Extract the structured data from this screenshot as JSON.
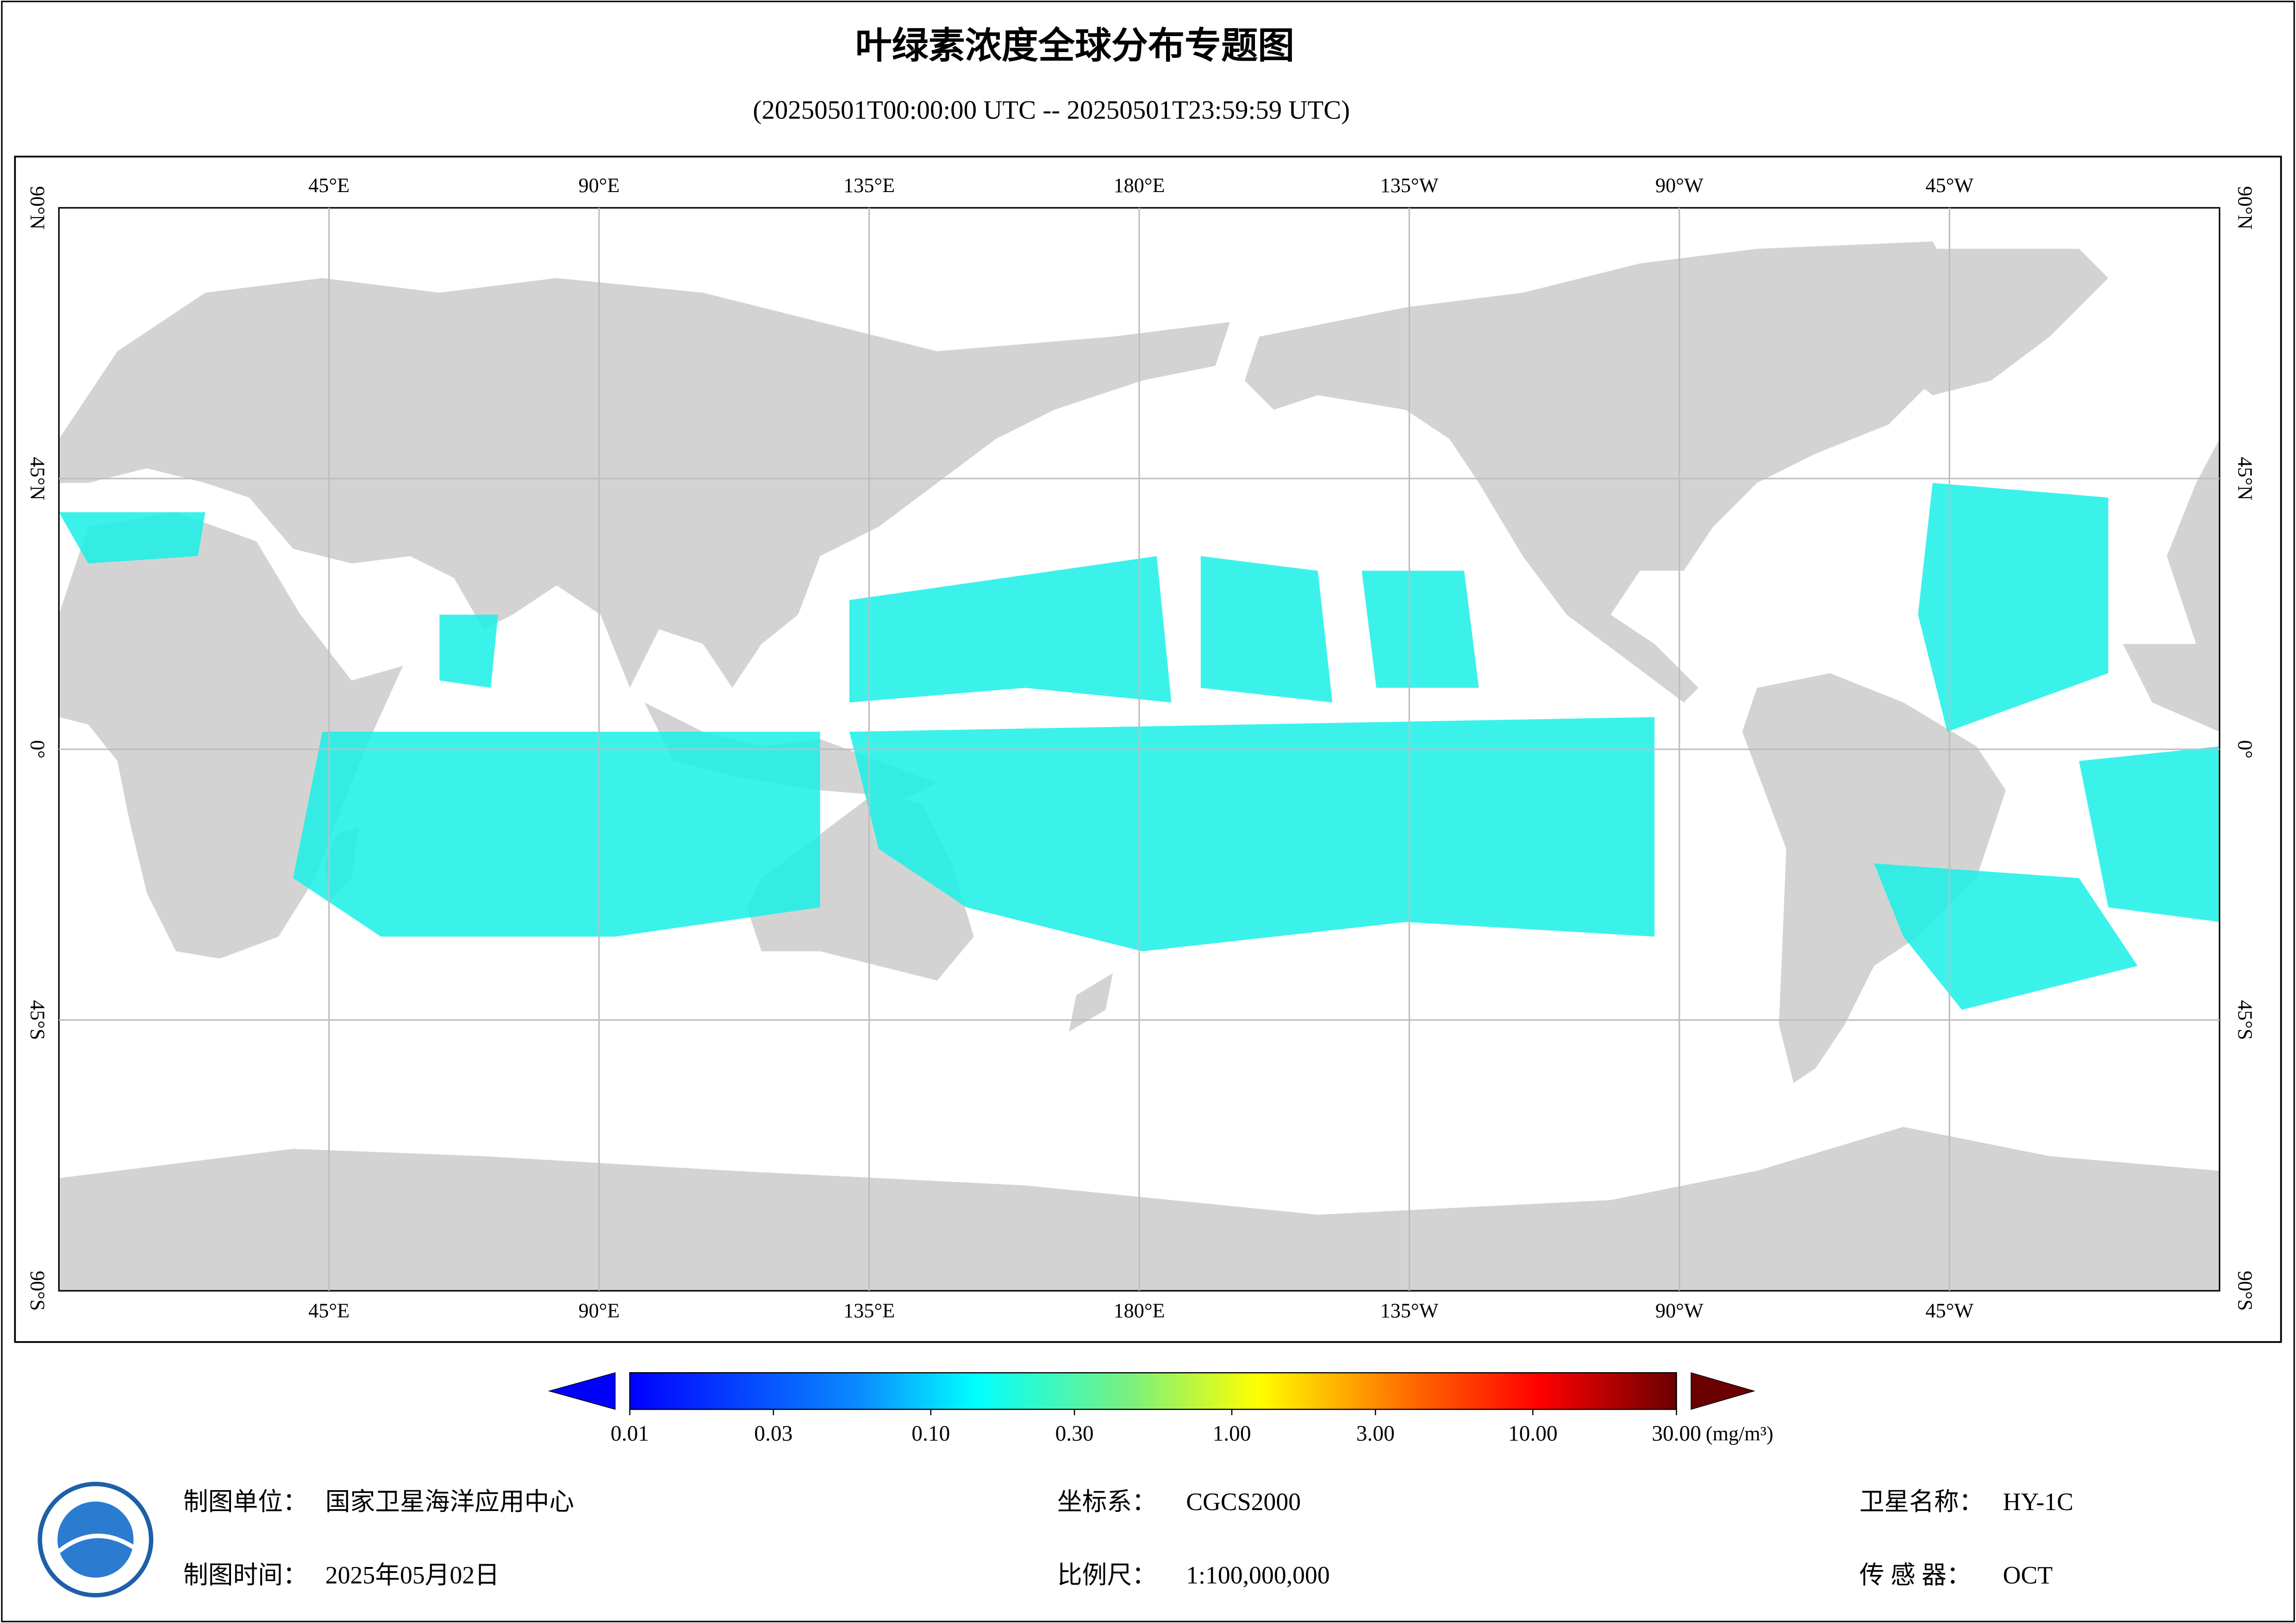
{
  "header": {
    "title": "叶绿素浓度全球分布专题图",
    "subtitle": "(20250501T00:00:00 UTC -- 20250501T23:59:59 UTC)"
  },
  "map": {
    "lon_labels": [
      "45°E",
      "90°E",
      "135°E",
      "180°E",
      "135°W",
      "90°W",
      "45°W"
    ],
    "lat_labels": [
      "90°N",
      "45°N",
      "0°",
      "45°S",
      "90°S"
    ]
  },
  "colorbar": {
    "unit": "(mg/m³)",
    "lim": [
      0.01,
      30
    ],
    "log": true,
    "ticks": [
      0.01,
      0.03,
      {
        "value": 0.1,
        "label": "0.10"
      },
      {
        "value": 0.3,
        "label": "0.30"
      },
      {
        "value": 1,
        "label": "1.00"
      },
      {
        "value": 3,
        "label": "3.00"
      },
      {
        "value": 10,
        "label": "10.00"
      },
      {
        "value": 30,
        "label": "30.00"
      }
    ]
  },
  "footer": {
    "unit_label": "制图单位：",
    "unit": "国家卫星海洋应用中心",
    "time_label": "制图时间：",
    "time": "2025年05月02日",
    "crs_label": "坐标系：",
    "crs": "CGCS2000",
    "scale_label": "比例尺：",
    "scale": "1:100,000,000",
    "satellite_label": "卫星名称：",
    "satellite": "HY-1C",
    "sensor_label": "传 感 器：",
    "sensor": "OCT"
  }
}
